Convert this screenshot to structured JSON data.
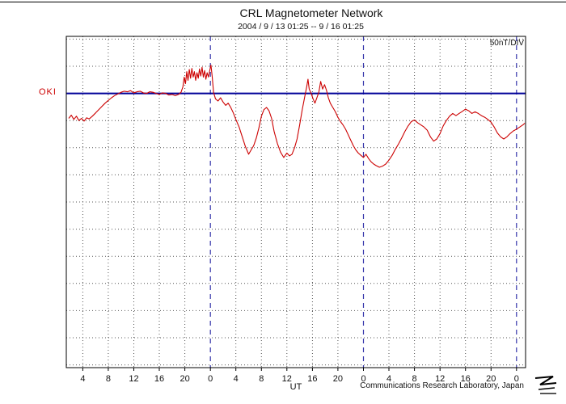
{
  "header": {
    "title": "CRL Magnetometer Network",
    "subtitle": "2004 / 9 / 13  01:25 --  9 / 16  01:25"
  },
  "footer": {
    "credit": "Communications Research Laboratory, Japan",
    "logo": "crl-logo"
  },
  "chart_data": {
    "type": "line",
    "title": "CRL Magnetometer Network",
    "subtitle": "2004 / 9 / 13  01:25 --  9 / 16  01:25",
    "station": "OKI",
    "scale_label": "50nT/DIV",
    "xlabel": "UT",
    "x_unit": "hours UT from 2004/9/13 00:00, span 9/13 01:25 to 9/16 01:25",
    "x_range_hours": [
      1.4167,
      73.4167
    ],
    "y_range_nT": [
      -505,
      105
    ],
    "nT_per_div": 50,
    "baseline_nT": 0,
    "grid": true,
    "legend": "none",
    "day_boundaries_hours": [
      24,
      48,
      72
    ],
    "tick_hours": [
      4,
      8,
      12,
      16,
      20,
      24,
      28,
      32,
      36,
      40,
      44,
      48,
      52,
      56,
      60,
      64,
      68,
      72
    ],
    "tick_labels": [
      "4",
      "8",
      "12",
      "16",
      "20",
      "0",
      "4",
      "8",
      "12",
      "16",
      "20",
      "0",
      "4",
      "8",
      "12",
      "16",
      "20",
      "0"
    ],
    "colors": {
      "trace": "#cc0000",
      "baseline": "#000099",
      "day_line": "#3333aa",
      "grid": "#555555",
      "axis": "#000000"
    },
    "series": [
      {
        "name": "OKI",
        "points": [
          [
            1.8,
            -46
          ],
          [
            2.2,
            -40
          ],
          [
            2.6,
            -48
          ],
          [
            3.0,
            -42
          ],
          [
            3.4,
            -50
          ],
          [
            3.8,
            -46
          ],
          [
            4.2,
            -51
          ],
          [
            4.6,
            -45
          ],
          [
            5.0,
            -47
          ],
          [
            5.5,
            -42
          ],
          [
            6.0,
            -36
          ],
          [
            6.5,
            -30
          ],
          [
            7.0,
            -24
          ],
          [
            7.5,
            -18
          ],
          [
            8.0,
            -13
          ],
          [
            8.5,
            -8
          ],
          [
            9.0,
            -4
          ],
          [
            9.5,
            -1
          ],
          [
            10.0,
            2
          ],
          [
            10.5,
            4
          ],
          [
            11.0,
            3
          ],
          [
            11.5,
            5
          ],
          [
            12.0,
            1
          ],
          [
            12.5,
            3
          ],
          [
            13.0,
            4
          ],
          [
            13.5,
            1
          ],
          [
            14.0,
            0
          ],
          [
            14.5,
            3
          ],
          [
            15.0,
            2
          ],
          [
            15.5,
            0
          ],
          [
            16.0,
            -2
          ],
          [
            16.5,
            1
          ],
          [
            17.0,
            0
          ],
          [
            17.5,
            -3
          ],
          [
            18.0,
            -2
          ],
          [
            18.5,
            -4
          ],
          [
            19.0,
            -2
          ],
          [
            19.4,
            2
          ],
          [
            19.7,
            12
          ],
          [
            19.9,
            30
          ],
          [
            20.1,
            18
          ],
          [
            20.3,
            40
          ],
          [
            20.5,
            24
          ],
          [
            20.7,
            44
          ],
          [
            20.9,
            28
          ],
          [
            21.1,
            46
          ],
          [
            21.3,
            30
          ],
          [
            21.5,
            40
          ],
          [
            21.7,
            24
          ],
          [
            21.9,
            38
          ],
          [
            22.1,
            28
          ],
          [
            22.3,
            45
          ],
          [
            22.5,
            32
          ],
          [
            22.7,
            48
          ],
          [
            22.9,
            30
          ],
          [
            23.1,
            42
          ],
          [
            23.3,
            26
          ],
          [
            23.5,
            38
          ],
          [
            23.7,
            30
          ],
          [
            23.9,
            42
          ],
          [
            24.1,
            52
          ],
          [
            24.3,
            30
          ],
          [
            24.5,
            2
          ],
          [
            24.8,
            -10
          ],
          [
            25.2,
            -14
          ],
          [
            25.6,
            -8
          ],
          [
            26.0,
            -16
          ],
          [
            26.4,
            -22
          ],
          [
            26.8,
            -18
          ],
          [
            27.2,
            -26
          ],
          [
            27.6,
            -36
          ],
          [
            28.0,
            -48
          ],
          [
            28.5,
            -62
          ],
          [
            29.0,
            -80
          ],
          [
            29.5,
            -98
          ],
          [
            30.0,
            -112
          ],
          [
            30.4,
            -104
          ],
          [
            30.8,
            -96
          ],
          [
            31.2,
            -82
          ],
          [
            31.6,
            -64
          ],
          [
            32.0,
            -42
          ],
          [
            32.4,
            -30
          ],
          [
            32.8,
            -26
          ],
          [
            33.2,
            -32
          ],
          [
            33.6,
            -46
          ],
          [
            34.0,
            -70
          ],
          [
            34.5,
            -92
          ],
          [
            35.0,
            -108
          ],
          [
            35.5,
            -118
          ],
          [
            36.0,
            -110
          ],
          [
            36.4,
            -115
          ],
          [
            36.8,
            -112
          ],
          [
            37.2,
            -100
          ],
          [
            37.6,
            -84
          ],
          [
            38.0,
            -58
          ],
          [
            38.4,
            -30
          ],
          [
            38.8,
            -6
          ],
          [
            39.1,
            12
          ],
          [
            39.3,
            26
          ],
          [
            39.5,
            8
          ],
          [
            39.8,
            0
          ],
          [
            40.1,
            -10
          ],
          [
            40.4,
            -18
          ],
          [
            40.7,
            -8
          ],
          [
            41.0,
            2
          ],
          [
            41.3,
            22
          ],
          [
            41.6,
            8
          ],
          [
            41.9,
            16
          ],
          [
            42.2,
            6
          ],
          [
            42.5,
            -8
          ],
          [
            42.8,
            -18
          ],
          [
            43.2,
            -26
          ],
          [
            43.6,
            -34
          ],
          [
            44.0,
            -44
          ],
          [
            44.4,
            -52
          ],
          [
            44.8,
            -58
          ],
          [
            45.2,
            -66
          ],
          [
            45.6,
            -76
          ],
          [
            46.0,
            -86
          ],
          [
            46.4,
            -96
          ],
          [
            46.8,
            -104
          ],
          [
            47.2,
            -110
          ],
          [
            47.6,
            -114
          ],
          [
            48.0,
            -118
          ],
          [
            48.4,
            -112
          ],
          [
            48.8,
            -120
          ],
          [
            49.2,
            -126
          ],
          [
            49.6,
            -130
          ],
          [
            50.0,
            -133
          ],
          [
            50.5,
            -136
          ],
          [
            51.0,
            -134
          ],
          [
            51.5,
            -130
          ],
          [
            52.0,
            -123
          ],
          [
            52.5,
            -114
          ],
          [
            53.0,
            -103
          ],
          [
            53.5,
            -93
          ],
          [
            54.0,
            -82
          ],
          [
            54.5,
            -70
          ],
          [
            55.0,
            -60
          ],
          [
            55.5,
            -52
          ],
          [
            56.0,
            -49
          ],
          [
            56.5,
            -54
          ],
          [
            57.0,
            -58
          ],
          [
            57.5,
            -62
          ],
          [
            58.0,
            -68
          ],
          [
            58.5,
            -80
          ],
          [
            59.0,
            -88
          ],
          [
            59.5,
            -84
          ],
          [
            60.0,
            -74
          ],
          [
            60.5,
            -60
          ],
          [
            61.0,
            -50
          ],
          [
            61.5,
            -42
          ],
          [
            62.0,
            -37
          ],
          [
            62.5,
            -41
          ],
          [
            63.0,
            -37
          ],
          [
            63.5,
            -33
          ],
          [
            64.0,
            -29
          ],
          [
            64.5,
            -32
          ],
          [
            65.0,
            -37
          ],
          [
            65.5,
            -34
          ],
          [
            66.0,
            -37
          ],
          [
            66.5,
            -41
          ],
          [
            67.0,
            -44
          ],
          [
            67.5,
            -48
          ],
          [
            68.0,
            -53
          ],
          [
            68.5,
            -62
          ],
          [
            69.0,
            -73
          ],
          [
            69.5,
            -80
          ],
          [
            70.0,
            -84
          ],
          [
            70.5,
            -80
          ],
          [
            71.0,
            -74
          ],
          [
            71.5,
            -69
          ],
          [
            72.0,
            -66
          ],
          [
            72.5,
            -62
          ],
          [
            73.0,
            -58
          ],
          [
            73.3,
            -55
          ]
        ]
      }
    ]
  }
}
